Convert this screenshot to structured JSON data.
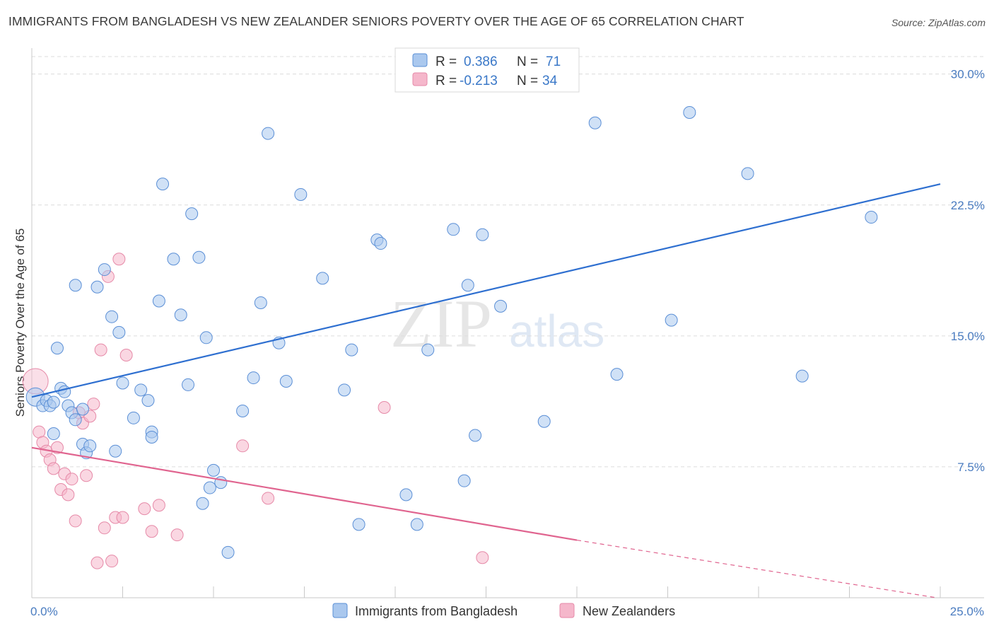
{
  "title": "IMMIGRANTS FROM BANGLADESH VS NEW ZEALANDER SENIORS POVERTY OVER THE AGE OF 65 CORRELATION CHART",
  "source": "Source: ZipAtlas.com",
  "watermark": {
    "zip": "ZIP",
    "atlas": "atlas"
  },
  "colors": {
    "blue_fill": "#aac8ee",
    "blue_stroke": "#5b8fd6",
    "blue_line": "#2e6fd0",
    "pink_fill": "#f5b7cb",
    "pink_stroke": "#e68aa8",
    "pink_line": "#e0648f",
    "tick_text": "#4a7cc0",
    "grid": "#dcdcdc"
  },
  "legend": {
    "rows": [
      {
        "r_label": "R =",
        "r_value": "0.386",
        "n_label": "N =",
        "n_value": "71"
      },
      {
        "r_label": "R =",
        "r_value": "-0.213",
        "n_label": "N =",
        "n_value": "34"
      }
    ]
  },
  "chart_data": {
    "type": "scatter",
    "title": "IMMIGRANTS FROM BANGLADESH VS NEW ZEALANDER SENIORS POVERTY OVER THE AGE OF 65 CORRELATION CHART",
    "xlabel": "",
    "ylabel": "Seniors Poverty Over the Age of 65",
    "xlim": [
      0,
      25
    ],
    "ylim": [
      0,
      31
    ],
    "x_tick_labels": [
      {
        "value": 0,
        "label": "0.0%"
      },
      {
        "value": 25,
        "label": "25.0%"
      }
    ],
    "y_tick_labels": [
      {
        "value": 7.5,
        "label": "7.5%"
      },
      {
        "value": 15,
        "label": "15.0%"
      },
      {
        "value": 22.5,
        "label": "22.5%"
      },
      {
        "value": 30,
        "label": "30.0%"
      }
    ],
    "grid": true,
    "legend_position": "top-center",
    "series": [
      {
        "name": "Immigrants from Bangladesh",
        "color": "#aac8ee",
        "points": [
          [
            0.1,
            11.5
          ],
          [
            0.3,
            11.0
          ],
          [
            0.4,
            11.3
          ],
          [
            0.5,
            11.0
          ],
          [
            0.6,
            11.2
          ],
          [
            0.8,
            12.0
          ],
          [
            0.9,
            11.8
          ],
          [
            1.0,
            11.0
          ],
          [
            1.1,
            10.6
          ],
          [
            1.2,
            10.2
          ],
          [
            0.6,
            9.4
          ],
          [
            1.4,
            8.8
          ],
          [
            1.5,
            8.3
          ],
          [
            1.6,
            8.7
          ],
          [
            0.7,
            14.3
          ],
          [
            1.2,
            17.9
          ],
          [
            1.8,
            17.8
          ],
          [
            2.0,
            18.8
          ],
          [
            2.2,
            16.1
          ],
          [
            2.4,
            15.2
          ],
          [
            2.5,
            12.3
          ],
          [
            2.3,
            8.4
          ],
          [
            2.8,
            10.3
          ],
          [
            3.0,
            11.9
          ],
          [
            3.2,
            11.3
          ],
          [
            3.3,
            9.5
          ],
          [
            3.5,
            17.0
          ],
          [
            3.6,
            23.7
          ],
          [
            3.9,
            19.4
          ],
          [
            4.1,
            16.2
          ],
          [
            4.3,
            12.2
          ],
          [
            4.4,
            22.0
          ],
          [
            4.6,
            19.5
          ],
          [
            4.8,
            14.9
          ],
          [
            5.0,
            7.3
          ],
          [
            5.2,
            6.6
          ],
          [
            4.9,
            6.3
          ],
          [
            4.7,
            5.4
          ],
          [
            5.4,
            2.6
          ],
          [
            5.8,
            10.7
          ],
          [
            6.1,
            12.6
          ],
          [
            6.3,
            16.9
          ],
          [
            6.5,
            26.6
          ],
          [
            6.8,
            14.6
          ],
          [
            7.0,
            12.4
          ],
          [
            7.4,
            23.1
          ],
          [
            8.0,
            18.3
          ],
          [
            8.6,
            11.9
          ],
          [
            8.8,
            14.2
          ],
          [
            9.0,
            4.2
          ],
          [
            9.5,
            20.5
          ],
          [
            9.6,
            20.3
          ],
          [
            10.3,
            5.9
          ],
          [
            10.6,
            4.2
          ],
          [
            10.9,
            14.2
          ],
          [
            11.6,
            21.1
          ],
          [
            11.9,
            6.7
          ],
          [
            12.0,
            17.9
          ],
          [
            12.2,
            9.3
          ],
          [
            12.4,
            20.8
          ],
          [
            12.9,
            16.7
          ],
          [
            14.1,
            10.1
          ],
          [
            15.5,
            27.2
          ],
          [
            16.1,
            12.8
          ],
          [
            17.6,
            15.9
          ],
          [
            18.1,
            27.8
          ],
          [
            19.7,
            24.3
          ],
          [
            21.2,
            12.7
          ],
          [
            23.1,
            21.8
          ],
          [
            1.4,
            10.8
          ],
          [
            3.3,
            9.2
          ]
        ],
        "trend_line": [
          [
            0,
            11.5
          ],
          [
            25,
            23.7
          ]
        ]
      },
      {
        "name": "New Zealanders",
        "color": "#f5b7cb",
        "points": [
          [
            0.1,
            12.4
          ],
          [
            0.2,
            9.5
          ],
          [
            0.3,
            8.9
          ],
          [
            0.4,
            8.4
          ],
          [
            0.5,
            7.9
          ],
          [
            0.6,
            7.4
          ],
          [
            0.7,
            8.6
          ],
          [
            0.8,
            6.2
          ],
          [
            0.9,
            7.1
          ],
          [
            1.0,
            5.9
          ],
          [
            1.1,
            6.8
          ],
          [
            1.2,
            4.4
          ],
          [
            1.3,
            10.6
          ],
          [
            1.4,
            10.0
          ],
          [
            1.5,
            7.0
          ],
          [
            1.6,
            10.4
          ],
          [
            1.7,
            11.1
          ],
          [
            1.8,
            2.0
          ],
          [
            1.9,
            14.2
          ],
          [
            2.0,
            4.0
          ],
          [
            2.1,
            18.4
          ],
          [
            2.2,
            2.1
          ],
          [
            2.3,
            4.6
          ],
          [
            2.4,
            19.4
          ],
          [
            2.5,
            4.6
          ],
          [
            2.6,
            13.9
          ],
          [
            3.1,
            5.1
          ],
          [
            3.3,
            3.8
          ],
          [
            3.5,
            5.3
          ],
          [
            4.0,
            3.6
          ],
          [
            5.8,
            8.7
          ],
          [
            6.5,
            5.7
          ],
          [
            9.7,
            10.9
          ],
          [
            12.4,
            2.3
          ]
        ],
        "trend_line": [
          [
            0,
            8.6
          ],
          [
            15,
            3.3
          ]
        ],
        "trend_line_dashed": [
          [
            15,
            3.3
          ],
          [
            24.9,
            0.0
          ]
        ]
      }
    ]
  }
}
